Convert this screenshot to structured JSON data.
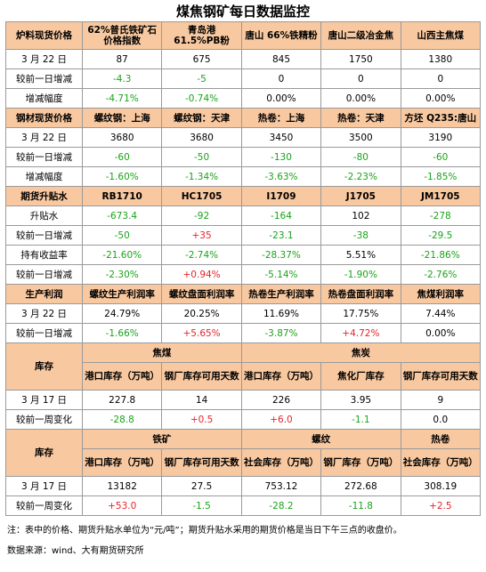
{
  "title": "煤焦钢矿每日数据监控",
  "sections": [
    {
      "header": [
        "炉料现货价格",
        "62%普氏铁矿石价格指数",
        "青岛港 61.5%PB粉",
        "唐山 66%铁精粉",
        "唐山二级冶金焦",
        "山西主焦煤"
      ],
      "rows": [
        [
          "3 月 22 日",
          "87",
          "675",
          "845",
          "1750",
          "1380"
        ],
        [
          "较前一日增减",
          "-4.3",
          "-5",
          "0",
          "0",
          "0"
        ],
        [
          "增减幅度",
          "-4.71%",
          "-0.74%",
          "0.00%",
          "0.00%",
          "0.00%"
        ]
      ]
    },
    {
      "header": [
        "钢材现货价格",
        "螺纹钢：上海",
        "螺纹钢：天津",
        "热卷：上海",
        "热卷：天津",
        "方坯 Q235:唐山"
      ],
      "rows": [
        [
          "3 月 22 日",
          "3680",
          "3680",
          "3450",
          "3500",
          "3190"
        ],
        [
          "较前一日增减",
          "-60",
          "-50",
          "-130",
          "-80",
          "-60"
        ],
        [
          "增减幅度",
          "-1.60%",
          "-1.34%",
          "-3.63%",
          "-2.23%",
          "-1.85%"
        ]
      ]
    },
    {
      "header": [
        "期货升贴水",
        "RB1710",
        "HC1705",
        "I1709",
        "J1705",
        "JM1705"
      ],
      "rows": [
        [
          "升贴水",
          "-673.4",
          "-92",
          "-164",
          "102",
          "-278"
        ],
        [
          "较前一日增减",
          "-50",
          "+35",
          "-23.1",
          "-38",
          "-29.5"
        ],
        [
          "持有收益率",
          "-21.60%",
          "-2.74%",
          "-28.37%",
          "5.51%",
          "-21.86%"
        ],
        [
          "较前一日增减",
          "-2.30%",
          "+0.94%",
          "-5.14%",
          "-1.90%",
          "-2.76%"
        ]
      ]
    },
    {
      "header": [
        "生产利润",
        "螺纹生产利润率",
        "螺纹盘面利润率",
        "热卷生产利润率",
        "热卷盘面利润率",
        "焦煤利润率"
      ],
      "rows": [
        [
          "3 月 22 日",
          "24.79%",
          "20.25%",
          "11.69%",
          "17.75%",
          "7.44%"
        ],
        [
          "较前一日增减",
          "-1.66%",
          "+5.65%",
          "-3.87%",
          "+4.72%",
          "0.00%"
        ]
      ]
    },
    {
      "corner": "库存",
      "groups": [
        "焦煤",
        "焦炭"
      ],
      "header": [
        "港口库存（万吨）",
        "钢厂库存可用天数",
        "港口库存（万吨）",
        "焦化厂库存",
        "钢厂库存可用天数"
      ],
      "rows": [
        [
          "3 月 17 日",
          "227.8",
          "14",
          "226",
          "3.95",
          "9"
        ],
        [
          "较前一周变化",
          "-28.8",
          "+0.5",
          "+6.0",
          "-1.1",
          "0.0"
        ]
      ]
    },
    {
      "corner": "库存",
      "groups": [
        "铁矿",
        "螺纹",
        "热卷"
      ],
      "header": [
        "港口库存（万吨）",
        "钢厂库存可用天数",
        "社会库存（万吨）",
        "钢厂库存（万吨）",
        "社会库存（万吨）"
      ],
      "rows": [
        [
          "3 月 17 日",
          "13182",
          "27.5",
          "753.12",
          "272.68",
          "308.19"
        ],
        [
          "较前一周变化",
          "+53.0",
          "-1.5",
          "-28.2",
          "-11.8",
          "+2.5"
        ]
      ]
    }
  ],
  "note": "注：表中的价格、期货升贴水单位为“元/吨”；期货升贴水采用的期货价格是当日下午三点的收盘价。",
  "source": "数据来源：wind、大有期货研究所"
}
